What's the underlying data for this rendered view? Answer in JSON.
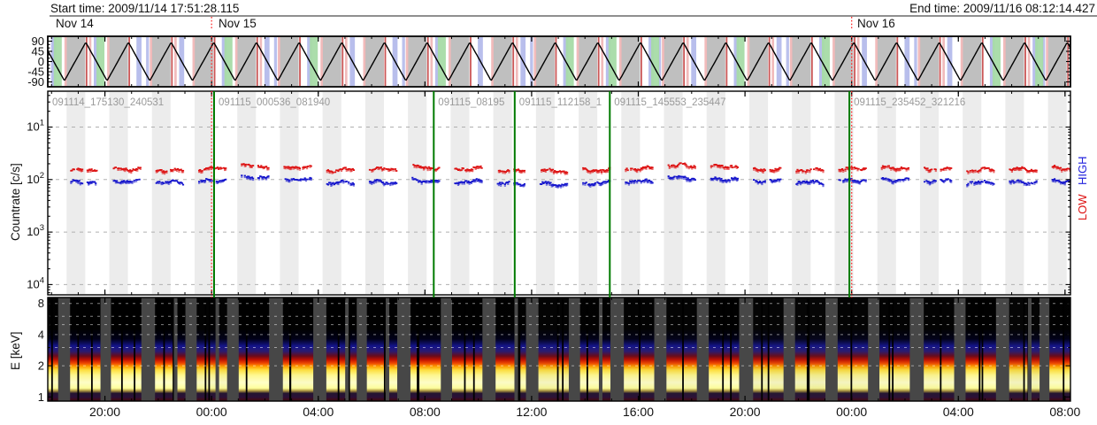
{
  "header": {
    "start": "Start time: 2009/11/14 17:51:28.115",
    "end": "End time: 2009/11/16 08:12:14.427"
  },
  "dates": [
    {
      "label": "Nov 14"
    },
    {
      "label": "Nov 15"
    },
    {
      "label": "Nov 16"
    }
  ],
  "panels": {
    "angle": {
      "ytick_labels": [
        "90",
        "45",
        "0",
        "-45",
        "-90"
      ],
      "ytick_values": [
        90,
        45,
        0,
        -45,
        -90
      ]
    },
    "countrate": {
      "ylabel": "Countrate [c/s]",
      "ytick_base": "10",
      "ytick_exponents": [
        4,
        3,
        2,
        1
      ],
      "legend_high": "HIGH",
      "legend_low": "LOW",
      "legend_high_color": "#2222dd",
      "legend_low_color": "#dd1111"
    },
    "spectrogram": {
      "ylabel": "E [keV]",
      "ytick_labels": [
        "8",
        "4",
        "2",
        "1"
      ],
      "ytick_values": [
        8,
        4,
        2,
        1
      ]
    }
  },
  "time_axis": {
    "total_hours": 38.3462,
    "first_major_h": 2.1422,
    "major_step_h": 4,
    "minor_step_h": 1,
    "first_minor_h": 0.1422,
    "tick_labels": [
      "20:00",
      "00:00",
      "04:00",
      "08:00",
      "12:00",
      "16:00",
      "20:00",
      "00:00",
      "04:00",
      "08:00"
    ]
  },
  "file_segments": [
    {
      "label": "091114_175130_240531",
      "start_h": 0
    },
    {
      "label": "091115_000536_081940",
      "start_h": 6.2356
    },
    {
      "label": "091115_08195",
      "start_h": 14.4728
    },
    {
      "label": "091115_112158_1",
      "start_h": 17.5083
    },
    {
      "label": "091115_145553_235447",
      "start_h": 21.0736
    },
    {
      "label": "091115_235452_321216",
      "start_h": 30.0567
    }
  ],
  "day_boundaries_h": [
    6.1422,
    30.1422
  ],
  "colors": {
    "green_line": "#007a00",
    "red_dashed": "#ff2a2a",
    "file_label": "#9a9a9a",
    "grid_gray": "#b0b0b0",
    "band_gray": "#b4b4b4",
    "band_blue": "#b4baeb",
    "band_green": "#a6dba6",
    "band_red": "#c23a3a",
    "band_pink": "#efb4b4",
    "stripe_gray": "#ececec",
    "spec_bg": "#474747",
    "scatter_red": "#dd1111",
    "scatter_blue": "#1414cc"
  },
  "chart_data": [
    {
      "type": "line",
      "title": "spacecraft scan/latitude angle",
      "ylabel": "",
      "ylim": [
        -90,
        90
      ],
      "yticks": [
        90,
        45,
        0,
        -45,
        -90
      ],
      "wave": {
        "shape": "triangle",
        "period_h": 1.6,
        "first_peak_h": 1.425,
        "amplitude": 85
      },
      "green_band_orbits": [
        -1,
        0,
        3,
        5,
        8,
        11,
        12,
        13,
        15,
        17,
        21,
        22,
        23
      ]
    },
    {
      "type": "scatter",
      "title": "Countrate vs time",
      "ylabel": "Countrate [c/s]",
      "yscale": "log",
      "ylim_log10": [
        0.8,
        4.674
      ],
      "yticks": [
        10,
        100,
        1000,
        10000
      ],
      "orbit_period_h": 1.6,
      "first_peak_h": 1.425,
      "segment_halfwidth_h": [
        0.55,
        0.45
      ],
      "series": [
        {
          "name": "LOW",
          "color": "#dd1111",
          "values": [
            1550,
            1600,
            1500,
            1620,
            1800,
            1750,
            1520,
            1560,
            1700,
            1620,
            1480,
            1450,
            1520,
            1620,
            1850,
            1780,
            1560,
            1500,
            1620,
            1680,
            1600,
            1520,
            1560,
            1620
          ]
        },
        {
          "name": "HIGH",
          "color": "#1414cc",
          "values": [
            900,
            950,
            880,
            960,
            1120,
            1000,
            860,
            890,
            950,
            910,
            840,
            820,
            860,
            920,
            1080,
            1020,
            950,
            890,
            960,
            1000,
            950,
            870,
            900,
            950
          ]
        }
      ],
      "split_orbits": [
        0,
        4,
        10,
        16,
        20
      ]
    },
    {
      "type": "heatmap",
      "title": "Energy spectrogram",
      "ylabel": "E [keV]",
      "yscale": "log2",
      "ylim": [
        0.9,
        9.3
      ],
      "yticks": [
        1,
        2,
        4,
        8
      ],
      "yticks_minor": [
        3,
        5,
        6,
        7
      ],
      "orbit_period_h": 1.6,
      "first_peak_h": 1.425,
      "block_halfwidth_h": [
        0.62,
        0.52
      ],
      "gridline_energies": [
        2,
        3,
        4,
        5,
        6,
        8
      ],
      "flux_profile": "intense 1-2 keV (yellow), moderate 2-2.5 keV (red), weak 2.5-3.5 keV (blue), none >4 keV (black)",
      "gradient": [
        [
          0.0,
          "#000000"
        ],
        [
          0.3,
          "#000000"
        ],
        [
          0.4,
          "#000018"
        ],
        [
          0.47,
          "#14148c"
        ],
        [
          0.52,
          "#2a1a70"
        ],
        [
          0.565,
          "#6b0a1a"
        ],
        [
          0.6,
          "#c01000"
        ],
        [
          0.635,
          "#f04800"
        ],
        [
          0.665,
          "#ffa000"
        ],
        [
          0.7,
          "#ffe040"
        ],
        [
          0.75,
          "#fff890"
        ],
        [
          0.82,
          "#ffffc8"
        ],
        [
          0.875,
          "#ffff9c"
        ],
        [
          0.9,
          "#b09a40"
        ],
        [
          0.925,
          "#241430"
        ],
        [
          0.96,
          "#2a1038"
        ],
        [
          0.985,
          "#400a18"
        ],
        [
          1.0,
          "#1c0810"
        ]
      ]
    }
  ]
}
